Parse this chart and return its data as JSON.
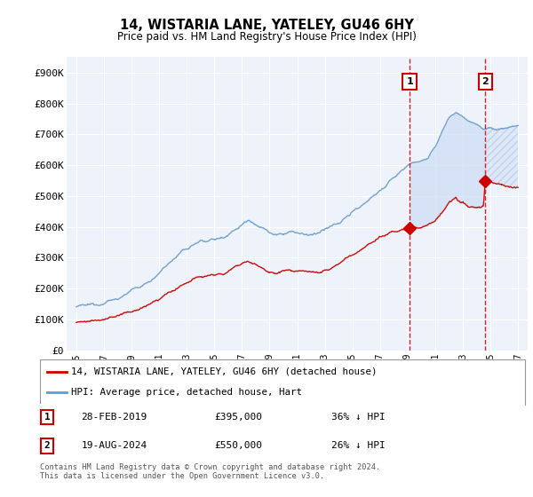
{
  "title": "14, WISTARIA LANE, YATELEY, GU46 6HY",
  "subtitle": "Price paid vs. HM Land Registry's House Price Index (HPI)",
  "legend_label_red": "14, WISTARIA LANE, YATELEY, GU46 6HY (detached house)",
  "legend_label_blue": "HPI: Average price, detached house, Hart",
  "annotation1_date": "28-FEB-2019",
  "annotation1_price": "£395,000",
  "annotation1_hpi": "36% ↓ HPI",
  "annotation1_year": 2019.15,
  "annotation1_value": 395000,
  "annotation2_date": "19-AUG-2024",
  "annotation2_price": "£550,000",
  "annotation2_hpi": "26% ↓ HPI",
  "annotation2_year": 2024.63,
  "annotation2_value": 550000,
  "footer": "Contains HM Land Registry data © Crown copyright and database right 2024.\nThis data is licensed under the Open Government Licence v3.0.",
  "ylim": [
    0,
    950000
  ],
  "yticks": [
    0,
    100000,
    200000,
    300000,
    400000,
    500000,
    600000,
    700000,
    800000,
    900000
  ],
  "ytick_labels": [
    "£0",
    "£100K",
    "£200K",
    "£300K",
    "£400K",
    "£500K",
    "£600K",
    "£700K",
    "£800K",
    "£900K"
  ],
  "background_color": "#ffffff",
  "plot_bg_color": "#eef2fa",
  "grid_color": "#ffffff",
  "red_color": "#cc0000",
  "blue_color": "#6699cc",
  "fill_color": "#ccddf5",
  "hatch_color": "#aabbdd"
}
